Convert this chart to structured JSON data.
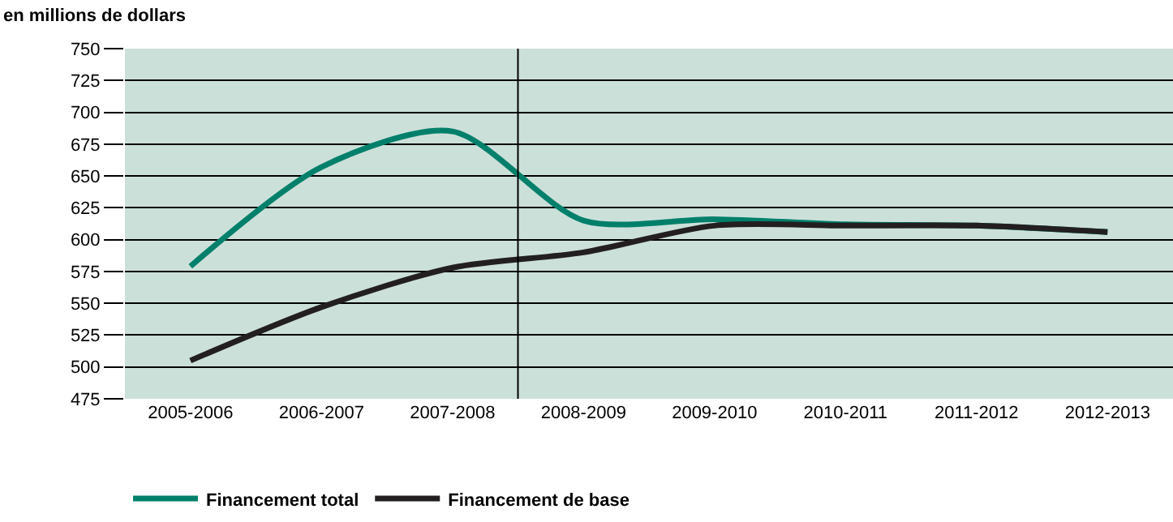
{
  "chart_data": {
    "type": "line",
    "ylabel": "en millions de dollars",
    "categories": [
      "2005-2006",
      "2006-2007",
      "2007-2008",
      "2008-2009",
      "2009-2010",
      "2010-2011",
      "2011-2012",
      "2012-2013"
    ],
    "series": [
      {
        "name": "Financement total",
        "color": "#00806a",
        "values": [
          579,
          657,
          685,
          615,
          616,
          612,
          611,
          606
        ]
      },
      {
        "name": "Financement de base",
        "color": "#231f20",
        "values": [
          505,
          547,
          578,
          590,
          611,
          611,
          611,
          606
        ]
      }
    ],
    "ylim": [
      475,
      750
    ],
    "yticks": [
      475,
      500,
      525,
      550,
      575,
      600,
      625,
      650,
      675,
      700,
      725,
      750
    ],
    "grid": "y",
    "legend": "bottom left",
    "marker": "none",
    "line_style": "solid"
  }
}
